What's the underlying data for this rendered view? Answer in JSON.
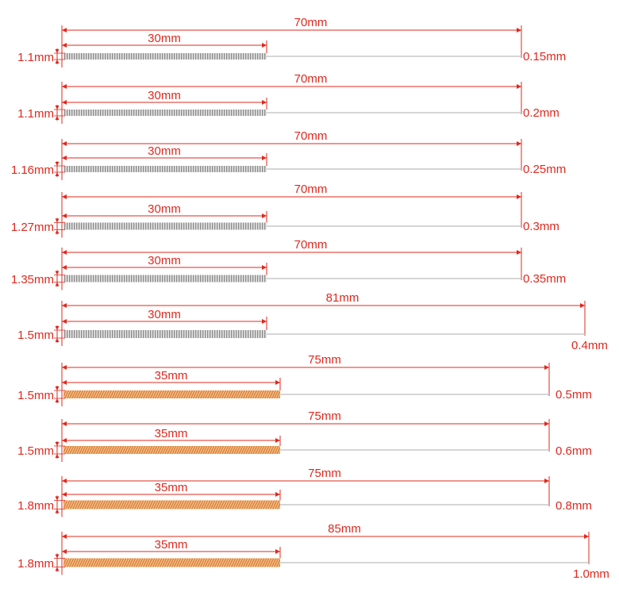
{
  "colors": {
    "dimension": "#e0281e",
    "wire": "#c8c8c8",
    "steel_coil": "#8c8c8c",
    "steel_coil_light": "#e6e6e6",
    "copper_coil": "#d9803a",
    "copper_coil_light": "#f6c48e"
  },
  "needles": [
    {
      "coil_diameter": "1.1mm",
      "coil_length": "30mm",
      "total_length": "70mm",
      "wire_diameter": "0.15mm",
      "coil_material": "steel"
    },
    {
      "coil_diameter": "1.1mm",
      "coil_length": "30mm",
      "total_length": "70mm",
      "wire_diameter": "0.2mm",
      "coil_material": "steel"
    },
    {
      "coil_diameter": "1.16mm",
      "coil_length": "30mm",
      "total_length": "70mm",
      "wire_diameter": "0.25mm",
      "coil_material": "steel"
    },
    {
      "coil_diameter": "1.27mm",
      "coil_length": "30mm",
      "total_length": "70mm",
      "wire_diameter": "0.3mm",
      "coil_material": "steel"
    },
    {
      "coil_diameter": "1.35mm",
      "coil_length": "30mm",
      "total_length": "70mm",
      "wire_diameter": "0.35mm",
      "coil_material": "steel"
    },
    {
      "coil_diameter": "1.5mm",
      "coil_length": "30mm",
      "total_length": "81mm",
      "wire_diameter": "0.4mm",
      "coil_material": "steel"
    },
    {
      "coil_diameter": "1.5mm",
      "coil_length": "35mm",
      "total_length": "75mm",
      "wire_diameter": "0.5mm",
      "coil_material": "copper"
    },
    {
      "coil_diameter": "1.5mm",
      "coil_length": "35mm",
      "total_length": "75mm",
      "wire_diameter": "0.6mm",
      "coil_material": "copper"
    },
    {
      "coil_diameter": "1.8mm",
      "coil_length": "35mm",
      "total_length": "75mm",
      "wire_diameter": "0.8mm",
      "coil_material": "copper"
    },
    {
      "coil_diameter": "1.8mm",
      "coil_length": "35mm",
      "total_length": "85mm",
      "wire_diameter": "1.0mm",
      "coil_material": "copper"
    }
  ]
}
